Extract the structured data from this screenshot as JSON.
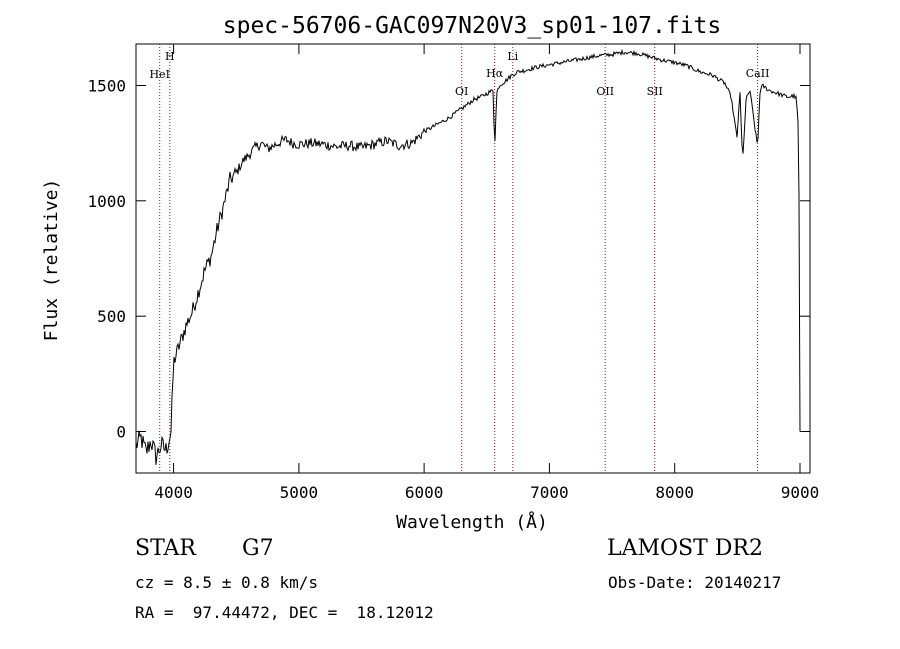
{
  "chart_data": {
    "type": "line",
    "title": "spec-56706-GAC097N20V3_sp01-107.fits",
    "xlabel": "Wavelength (Å)",
    "ylabel": "Flux (relative)",
    "xlim": [
      3700,
      9080
    ],
    "ylim": [
      -180,
      1680
    ],
    "xticks": [
      4000,
      5000,
      6000,
      7000,
      8000,
      9000
    ],
    "yticks": [
      0,
      500,
      1000,
      1500
    ],
    "grid": false,
    "line_color": "#000000",
    "marker_color": "#8b1a1a",
    "spectrum": {
      "x": [
        3700,
        3740,
        3780,
        3820,
        3860,
        3900,
        3940,
        3980,
        4000,
        4050,
        4100,
        4150,
        4200,
        4250,
        4300,
        4350,
        4400,
        4450,
        4500,
        4550,
        4600,
        4650,
        4700,
        4750,
        4800,
        4850,
        4900,
        4950,
        5000,
        5100,
        5200,
        5300,
        5400,
        5500,
        5600,
        5700,
        5800,
        5900,
        6000,
        6100,
        6200,
        6250,
        6300,
        6350,
        6400,
        6450,
        6500,
        6550,
        6563,
        6580,
        6600,
        6650,
        6700,
        6750,
        6800,
        6900,
        7000,
        7100,
        7200,
        7300,
        7400,
        7500,
        7600,
        7700,
        7800,
        7900,
        8000,
        8100,
        8200,
        8300,
        8400,
        8450,
        8498,
        8520,
        8542,
        8570,
        8600,
        8662,
        8680,
        8700,
        8750,
        8800,
        8850,
        8900,
        8950,
        8970,
        8990,
        9000
      ],
      "y": [
        -60,
        -30,
        -90,
        -40,
        -110,
        -60,
        -80,
        0,
        300,
        380,
        460,
        520,
        610,
        700,
        760,
        880,
        980,
        1090,
        1120,
        1170,
        1200,
        1230,
        1250,
        1225,
        1240,
        1255,
        1265,
        1250,
        1245,
        1250,
        1245,
        1235,
        1240,
        1230,
        1245,
        1260,
        1240,
        1250,
        1300,
        1330,
        1360,
        1380,
        1400,
        1420,
        1440,
        1450,
        1465,
        1480,
        1230,
        1470,
        1500,
        1520,
        1545,
        1560,
        1565,
        1580,
        1590,
        1600,
        1610,
        1620,
        1630,
        1635,
        1645,
        1640,
        1625,
        1610,
        1600,
        1585,
        1560,
        1545,
        1510,
        1450,
        1270,
        1480,
        1170,
        1440,
        1480,
        1230,
        1470,
        1500,
        1480,
        1470,
        1460,
        1450,
        1455,
        1445,
        1300,
        0
      ]
    },
    "line_markers": [
      {
        "label": "H",
        "x": 3970
      },
      {
        "label": "HeI",
        "x": 3889
      },
      {
        "label": "OI",
        "x": 6300
      },
      {
        "label": "Hα",
        "x": 6563
      },
      {
        "label": "Li",
        "x": 6708
      },
      {
        "label": "OII",
        "x": 7445
      },
      {
        "label": "SII",
        "x": 7840
      },
      {
        "label": "CaII",
        "x": 8662
      }
    ]
  },
  "info": {
    "object_class": "STAR",
    "subclass": "G7",
    "survey": "LAMOST DR2",
    "cz": "cz = 8.5 ± 0.8 km/s",
    "obs_date": "Obs-Date: 20140217",
    "radec": "RA =  97.44472, DEC =  18.12012"
  }
}
